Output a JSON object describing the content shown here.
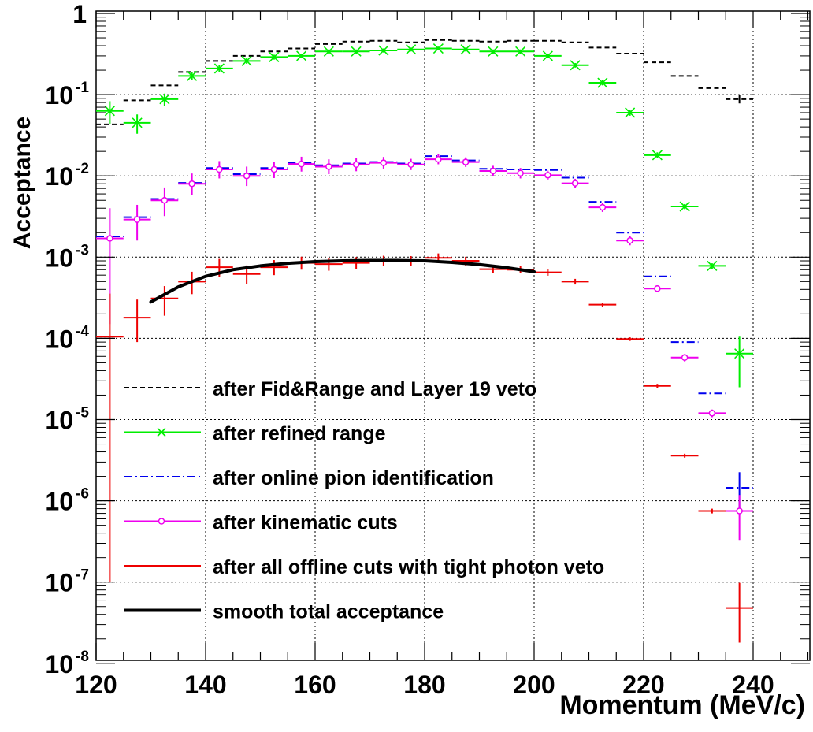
{
  "chart_data": {
    "type": "scatter",
    "xlabel": "Momentum (MeV/c)",
    "ylabel": "Acceptance",
    "xlim": [
      120,
      250
    ],
    "ylim": [
      1e-08,
      1.4
    ],
    "y_scale": "log",
    "grid": true,
    "bin_width": 5,
    "x_ticks": [
      "120",
      "140",
      "160",
      "180",
      "200",
      "220",
      "240"
    ],
    "y_ticks": [
      {
        "base": "1",
        "exp": ""
      },
      {
        "base": "10",
        "exp": "-1"
      },
      {
        "base": "10",
        "exp": "-2"
      },
      {
        "base": "10",
        "exp": "-3"
      },
      {
        "base": "10",
        "exp": "-4"
      },
      {
        "base": "10",
        "exp": "-5"
      },
      {
        "base": "10",
        "exp": "-6"
      },
      {
        "base": "10",
        "exp": "-7"
      },
      {
        "base": "10",
        "exp": "-8"
      }
    ],
    "legend_position": "bottom-left",
    "series": [
      {
        "name": "after Fid&Range and Layer 19 veto",
        "color": "#000000",
        "style": "dashed",
        "marker": "none",
        "x": [
          122.5,
          127.5,
          132.5,
          137.5,
          142.5,
          147.5,
          152.5,
          157.5,
          162.5,
          167.5,
          172.5,
          177.5,
          182.5,
          187.5,
          192.5,
          197.5,
          202.5,
          207.5,
          212.5,
          217.5,
          222.5,
          227.5,
          232.5,
          237.5
        ],
        "y": [
          0.043,
          0.085,
          0.13,
          0.19,
          0.26,
          0.3,
          0.34,
          0.37,
          0.42,
          0.45,
          0.46,
          0.44,
          0.47,
          0.46,
          0.45,
          0.46,
          0.46,
          0.44,
          0.38,
          0.32,
          0.25,
          0.17,
          0.12,
          0.088
        ],
        "err_low": [
          0,
          0,
          0,
          0,
          0,
          0,
          0,
          0,
          0,
          0,
          0,
          0,
          0,
          0,
          0,
          0,
          0,
          0,
          0,
          0,
          0,
          0,
          0,
          0.01
        ],
        "err_high": [
          0,
          0,
          0,
          0,
          0,
          0,
          0,
          0,
          0,
          0,
          0,
          0,
          0,
          0,
          0,
          0,
          0,
          0,
          0,
          0,
          0,
          0,
          0,
          0.01
        ]
      },
      {
        "name": "after refined range",
        "color": "#00ee00",
        "style": "solid",
        "marker": "x",
        "x": [
          122.5,
          127.5,
          132.5,
          137.5,
          142.5,
          147.5,
          152.5,
          157.5,
          162.5,
          167.5,
          172.5,
          177.5,
          182.5,
          187.5,
          192.5,
          197.5,
          202.5,
          207.5,
          212.5,
          217.5,
          222.5,
          227.5,
          232.5,
          237.5
        ],
        "y": [
          0.063,
          0.045,
          0.088,
          0.17,
          0.21,
          0.26,
          0.29,
          0.3,
          0.34,
          0.34,
          0.35,
          0.36,
          0.37,
          0.36,
          0.34,
          0.34,
          0.3,
          0.23,
          0.14,
          0.06,
          0.018,
          0.0042,
          0.00078,
          6.5e-05
        ],
        "err_low": [
          0.02,
          0.012,
          0.015,
          0.02,
          0.02,
          0.02,
          0.02,
          0.02,
          0.02,
          0.02,
          0.02,
          0.02,
          0.02,
          0.02,
          0.02,
          0.02,
          0.02,
          0.015,
          0.01,
          0.005,
          0.0015,
          0.0003,
          6e-05,
          4e-05
        ],
        "err_high": [
          0.02,
          0.012,
          0.015,
          0.02,
          0.02,
          0.02,
          0.02,
          0.02,
          0.02,
          0.02,
          0.02,
          0.02,
          0.02,
          0.02,
          0.02,
          0.02,
          0.02,
          0.015,
          0.01,
          0.005,
          0.0015,
          0.0003,
          6e-05,
          4e-05
        ]
      },
      {
        "name": "after online pion identification",
        "color": "#0000ee",
        "style": "dashdot",
        "marker": "none",
        "x": [
          122.5,
          127.5,
          132.5,
          137.5,
          142.5,
          147.5,
          152.5,
          157.5,
          162.5,
          167.5,
          172.5,
          177.5,
          182.5,
          187.5,
          192.5,
          197.5,
          202.5,
          207.5,
          212.5,
          217.5,
          222.5,
          227.5,
          232.5,
          237.5
        ],
        "y": [
          0.0018,
          0.0031,
          0.0052,
          0.0082,
          0.0125,
          0.0105,
          0.0125,
          0.0145,
          0.0135,
          0.0142,
          0.0148,
          0.0142,
          0.0175,
          0.0155,
          0.0122,
          0.012,
          0.0118,
          0.0095,
          0.0048,
          0.002,
          0.00058,
          9e-05,
          2.1e-05,
          1.45e-06
        ],
        "err_low": [
          0,
          0,
          0,
          0,
          0,
          0,
          0,
          0,
          0,
          0,
          0,
          0,
          0,
          0,
          0,
          0,
          0,
          0,
          0,
          0,
          0,
          0,
          0,
          7e-07
        ],
        "err_high": [
          0,
          0,
          0,
          0,
          0,
          0,
          0,
          0,
          0,
          0,
          0,
          0,
          0,
          0,
          0,
          0,
          0,
          0,
          0,
          0,
          0,
          0,
          0,
          8e-07
        ]
      },
      {
        "name": "after kinematic cuts",
        "color": "#ee00ee",
        "style": "solid",
        "marker": "circle",
        "x": [
          122.5,
          127.5,
          132.5,
          137.5,
          142.5,
          147.5,
          152.5,
          157.5,
          162.5,
          167.5,
          172.5,
          177.5,
          182.5,
          187.5,
          192.5,
          197.5,
          202.5,
          207.5,
          212.5,
          217.5,
          222.5,
          227.5,
          232.5,
          237.5
        ],
        "y": [
          0.0017,
          0.0029,
          0.005,
          0.008,
          0.012,
          0.01,
          0.012,
          0.014,
          0.013,
          0.0138,
          0.0145,
          0.0138,
          0.016,
          0.0148,
          0.0115,
          0.0108,
          0.0102,
          0.0081,
          0.0041,
          0.0016,
          0.00041,
          5.8e-05,
          1.2e-05,
          7.5e-07
        ],
        "err_low": [
          0.00155,
          0.0013,
          0.0018,
          0.0022,
          0.0027,
          0.0025,
          0.0026,
          0.0027,
          0.0025,
          0.0024,
          0.0022,
          0.002,
          0.0021,
          0.0019,
          0.0016,
          0.0015,
          0.0013,
          0.001,
          0.0005,
          0.0002,
          4e-05,
          6e-06,
          1.3e-06,
          4.2e-07
        ],
        "err_high": [
          0.0023,
          0.0015,
          0.0022,
          0.0027,
          0.0032,
          0.003,
          0.003,
          0.0032,
          0.003,
          0.0028,
          0.0026,
          0.0024,
          0.0024,
          0.0021,
          0.0018,
          0.0017,
          0.0014,
          0.0011,
          0.0006,
          0.0002,
          4e-05,
          6e-06,
          1.3e-06,
          4.3e-07
        ]
      },
      {
        "name": "after all offline cuts with tight photon veto",
        "color": "#ee0000",
        "style": "solid",
        "marker": "none",
        "x": [
          122.5,
          127.5,
          132.5,
          137.5,
          142.5,
          147.5,
          152.5,
          157.5,
          162.5,
          167.5,
          172.5,
          177.5,
          182.5,
          187.5,
          192.5,
          197.5,
          202.5,
          207.5,
          212.5,
          217.5,
          222.5,
          227.5,
          232.5,
          237.5
        ],
        "y": [
          0.000105,
          0.00018,
          0.00031,
          0.0005,
          0.00075,
          0.00062,
          0.00075,
          0.00085,
          0.00082,
          0.00085,
          0.0009,
          0.0009,
          0.00098,
          0.0009,
          0.00071,
          0.0007,
          0.00065,
          0.0005,
          0.00026,
          9.8e-05,
          2.6e-05,
          3.6e-06,
          7.5e-07,
          4.8e-08
        ],
        "err_low": [
          0.0001049,
          9e-05,
          0.00012,
          0.00015,
          0.00018,
          0.00015,
          0.00015,
          0.00015,
          0.00014,
          0.00014,
          0.00013,
          0.00012,
          0.00012,
          0.00011,
          8e-05,
          7e-05,
          6e-05,
          4e-05,
          1.5e-05,
          5e-06,
          1.5e-06,
          2e-07,
          5e-08,
          3e-08
        ],
        "err_high": [
          0.00025,
          0.00012,
          0.00013,
          0.00016,
          0.0002,
          0.00017,
          0.00017,
          0.00016,
          0.00015,
          0.00015,
          0.00014,
          0.00013,
          0.00013,
          0.00011,
          8e-05,
          7e-05,
          6e-05,
          4e-05,
          1.5e-05,
          5e-06,
          1.5e-06,
          2e-07,
          5e-08,
          5e-08
        ]
      }
    ],
    "smooth_curve": {
      "name": "smooth total acceptance",
      "color": "#000000",
      "x": [
        130,
        135,
        140,
        145,
        150,
        155,
        160,
        165,
        170,
        175,
        180,
        185,
        190,
        195,
        200
      ],
      "y": [
        0.00028,
        0.00043,
        0.00058,
        0.0007,
        0.00078,
        0.00084,
        0.00088,
        0.0009,
        0.00091,
        0.00091,
        0.0009,
        0.00086,
        0.00081,
        0.00074,
        0.00066
      ]
    }
  }
}
